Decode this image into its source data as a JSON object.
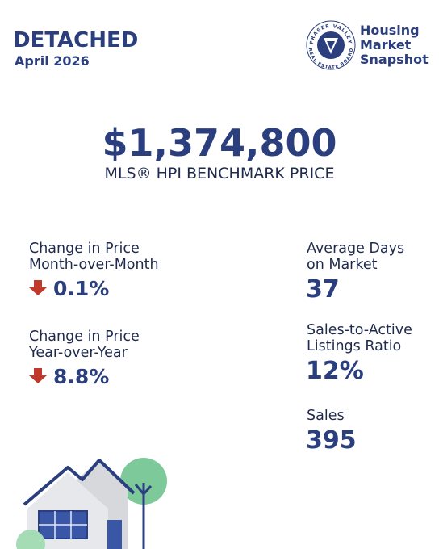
{
  "header": {
    "title": "DETACHED",
    "date": "April 2026"
  },
  "logo": {
    "ring_top": "FRASER VALLEY",
    "ring_bottom": "REAL ESTATE BOARD",
    "lines": [
      "Housing",
      "Market",
      "Snapshot"
    ]
  },
  "benchmark": {
    "price": "$1,374,800",
    "label": "MLS® HPI BENCHMARK PRICE"
  },
  "left_stats": [
    {
      "label": [
        "Change in Price",
        "Month-over-Month"
      ],
      "value": "0.1%"
    },
    {
      "label": [
        "Change in Price",
        "Year-over-Year"
      ],
      "value": "8.8%"
    }
  ],
  "right_stats": [
    {
      "label": [
        "Average Days",
        "on Market"
      ],
      "value": "37"
    },
    {
      "label": [
        "Sales-to-Active",
        "Listings Ratio"
      ],
      "value": "12%"
    },
    {
      "label": [
        "Sales"
      ],
      "value": "395"
    }
  ]
}
